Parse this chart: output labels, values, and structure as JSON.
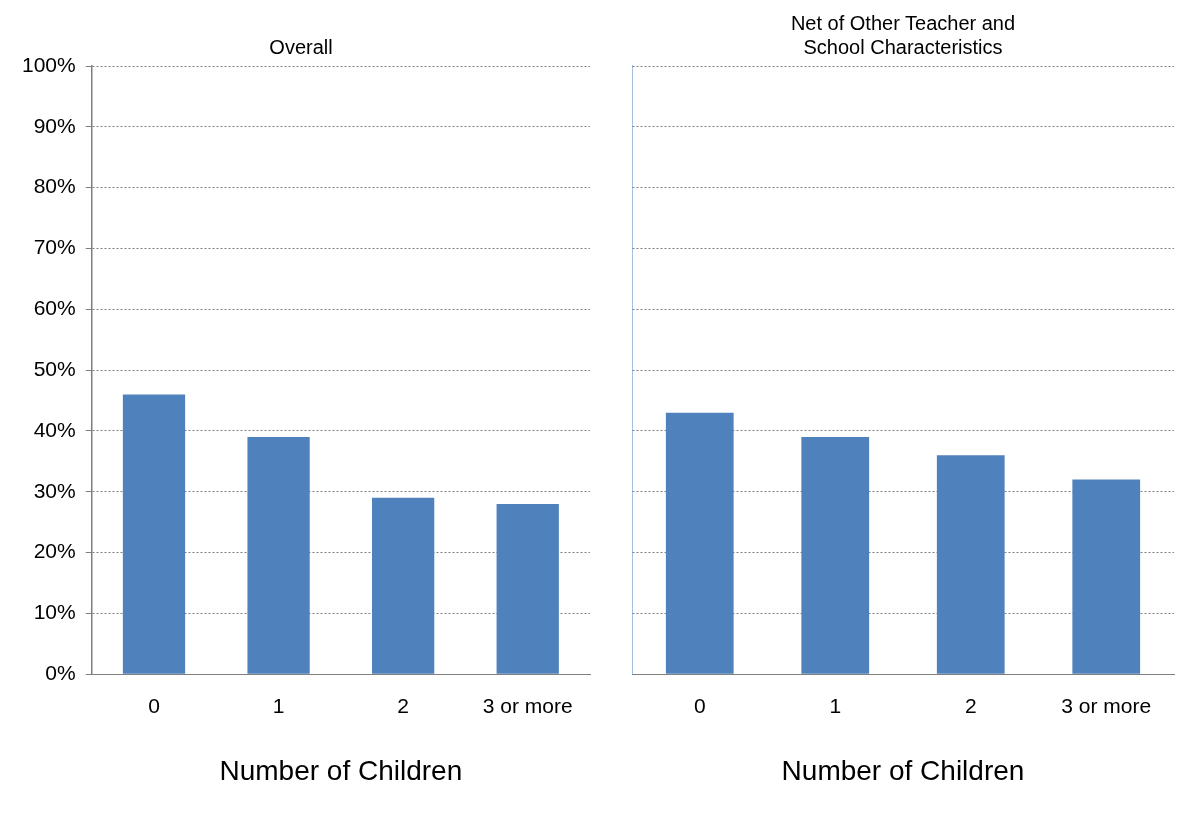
{
  "chart_data": [
    {
      "type": "bar",
      "title": "Overall",
      "xlabel": "Number of Children",
      "categories": [
        "0",
        "1",
        "2",
        "3 or more"
      ],
      "values": [
        46,
        39,
        29,
        28
      ],
      "color": "#4f81bd",
      "ylim": [
        0,
        100
      ],
      "yticks": [
        {
          "value": 0,
          "label": "0%"
        },
        {
          "value": 10,
          "label": "10%"
        },
        {
          "value": 20,
          "label": "20%"
        },
        {
          "value": 30,
          "label": "30%"
        },
        {
          "value": 40,
          "label": "40%"
        },
        {
          "value": 50,
          "label": "50%"
        },
        {
          "value": 60,
          "label": "60%"
        },
        {
          "value": 70,
          "label": "70%"
        },
        {
          "value": 80,
          "label": "80%"
        },
        {
          "value": 90,
          "label": "90%"
        },
        {
          "value": 100,
          "label": "100%"
        }
      ],
      "grid": "y",
      "legend": false
    },
    {
      "type": "bar",
      "title": "Net of Other Teacher and\nSchool Characteristics",
      "xlabel": "Number of Children",
      "categories": [
        "0",
        "1",
        "2",
        "3 or more"
      ],
      "values": [
        43,
        39,
        36,
        32
      ],
      "color": "#4f81bd",
      "ylim": [
        0,
        100
      ],
      "yticks": [
        {
          "value": 0,
          "label": null
        },
        {
          "value": 10,
          "label": null
        },
        {
          "value": 20,
          "label": null
        },
        {
          "value": 30,
          "label": null
        },
        {
          "value": 40,
          "label": null
        },
        {
          "value": 50,
          "label": null
        },
        {
          "value": 60,
          "label": null
        },
        {
          "value": 70,
          "label": null
        },
        {
          "value": 80,
          "label": null
        },
        {
          "value": 90,
          "label": null
        },
        {
          "value": 100,
          "label": null
        }
      ],
      "grid": "y",
      "legend": false,
      "tick_labels": "x"
    }
  ]
}
